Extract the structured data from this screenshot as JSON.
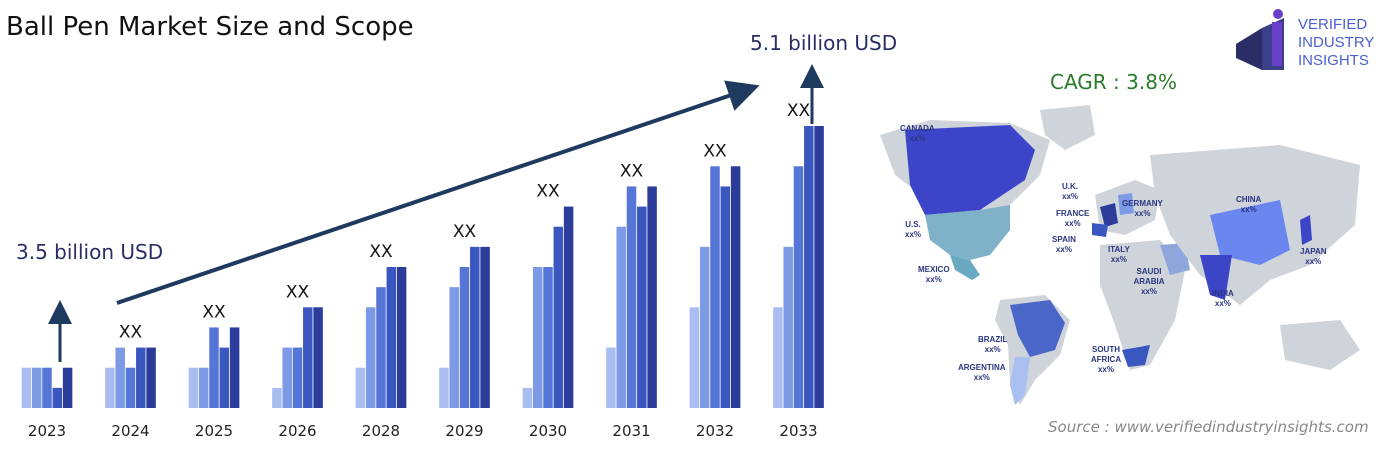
{
  "header": {
    "title": "Ball Pen Market Size and Scope"
  },
  "start_value_label": "3.5 billion USD",
  "end_value_label": "5.1 billion USD",
  "cagr": "CAGR : 3.8%",
  "logo": {
    "line1": "VERIFIED",
    "line2": "INDUSTRY",
    "line3": "INSIGHTS"
  },
  "source": "Source : www.verifiedindustryinsights.com",
  "map_labels": [
    {
      "name": "CANADA",
      "value": "xx%"
    },
    {
      "name": "U.S.",
      "value": "xx%"
    },
    {
      "name": "MEXICO",
      "value": "xx%"
    },
    {
      "name": "BRAZIL",
      "value": "xx%"
    },
    {
      "name": "ARGENTINA",
      "value": "xx%"
    },
    {
      "name": "U.K.",
      "value": "xx%"
    },
    {
      "name": "FRANCE",
      "value": "xx%"
    },
    {
      "name": "SPAIN",
      "value": "xx%"
    },
    {
      "name": "GERMANY",
      "value": "xx%"
    },
    {
      "name": "ITALY",
      "value": "xx%"
    },
    {
      "name": "SAUDI ARABIA",
      "value": "xx%"
    },
    {
      "name": "SOUTH AFRICA",
      "value": "xx%"
    },
    {
      "name": "CHINA",
      "value": "xx%"
    },
    {
      "name": "INDIA",
      "value": "xx%"
    },
    {
      "name": "JAPAN",
      "value": "xx%"
    }
  ],
  "colors": {
    "bar_shades": [
      "#a9bdf0",
      "#7d9ae6",
      "#5576d6",
      "#3a56bf",
      "#2b3c9a"
    ],
    "arrow": "#1f3a5f"
  },
  "chart_data": {
    "type": "bar",
    "categories": [
      "2023",
      "2024",
      "2025",
      "2026",
      "2028",
      "2029",
      "2030",
      "2031",
      "2032",
      "2033"
    ],
    "data_labels": [
      "",
      "XX",
      "XX",
      "XX",
      "XX",
      "XX",
      "XX",
      "XX",
      "XX",
      "XX"
    ],
    "series": [
      {
        "values": [
          2,
          2,
          2,
          1,
          2,
          2,
          1,
          3,
          5,
          5
        ]
      },
      {
        "values": [
          2,
          3,
          2,
          3,
          5,
          6,
          7,
          9,
          8,
          8
        ]
      },
      {
        "values": [
          2,
          2,
          4,
          3,
          6,
          7,
          7,
          11,
          12,
          12
        ]
      },
      {
        "values": [
          1,
          3,
          3,
          5,
          7,
          8,
          9,
          10,
          11,
          14
        ]
      },
      {
        "values": [
          2,
          3,
          4,
          5,
          7,
          8,
          10,
          11,
          12,
          14
        ]
      }
    ],
    "ylim": [
      0,
      14
    ]
  }
}
